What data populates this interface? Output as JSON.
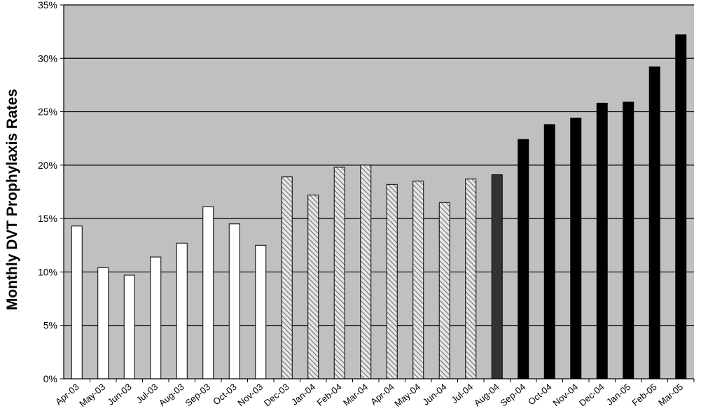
{
  "chart_data": {
    "type": "bar",
    "ylabel": "Monthly DVT Prophylaxis Rates",
    "ylim": [
      0,
      35
    ],
    "ytick_values": [
      0,
      5,
      10,
      15,
      20,
      25,
      30,
      35
    ],
    "ytick_labels": [
      "0%",
      "5%",
      "10%",
      "15%",
      "20%",
      "25%",
      "30%",
      "35%"
    ],
    "grid": true,
    "categories": [
      "Apr-03",
      "May-03",
      "Jun-03",
      "Jul-03",
      "Aug-03",
      "Sep-03",
      "Oct-03",
      "Nov-03",
      "Dec-03",
      "Jan-04",
      "Feb-04",
      "Mar-04",
      "Apr-04",
      "May-04",
      "Jun-04",
      "Jul-04",
      "Aug-04",
      "Sep-04",
      "Oct-04",
      "Nov-04",
      "Dec-04",
      "Jan-05",
      "Feb-05",
      "Mar-05"
    ],
    "values": [
      14.3,
      10.4,
      9.7,
      11.4,
      12.7,
      16.1,
      14.5,
      12.5,
      18.9,
      17.2,
      19.8,
      20.0,
      18.2,
      18.5,
      16.5,
      18.7,
      19.1,
      22.4,
      23.8,
      24.4,
      25.8,
      25.9,
      29.2,
      32.2
    ],
    "bar_styles": [
      "white",
      "white",
      "white",
      "white",
      "white",
      "white",
      "white",
      "white",
      "hatched",
      "hatched",
      "hatched",
      "hatched",
      "hatched",
      "hatched",
      "hatched",
      "hatched",
      "dark-gray",
      "black",
      "black",
      "black",
      "black",
      "black",
      "black",
      "black"
    ],
    "colors": {
      "plot_background": "#c0c0c0",
      "white_bar": "#ffffff",
      "hatched_bar_base": "#e6e6e6",
      "hatched_bar_line": "#707070",
      "dark_gray_bar": "#333333",
      "black_bar": "#000000",
      "gridline": "#000000"
    }
  }
}
